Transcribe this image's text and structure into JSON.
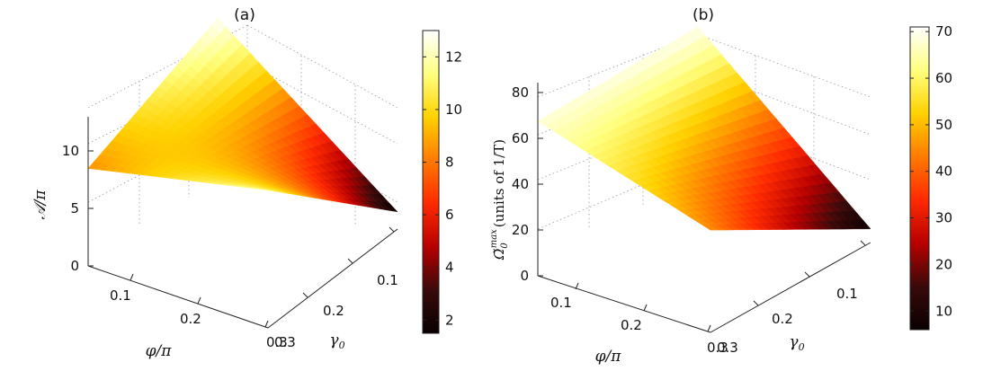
{
  "colormap": {
    "name": "hot",
    "stops": [
      "#0a0000",
      "#3a0a0a",
      "#b80000",
      "#ff2a00",
      "#ff7a00",
      "#ffd200",
      "#ffff80",
      "#ffffff"
    ]
  },
  "chart_data": [
    {
      "type": "surface",
      "panel_label": "(a)",
      "x_axis": {
        "label": "φ/π",
        "ticks": [
          "0.1",
          "0.2",
          "0.3"
        ],
        "range": [
          0.05,
          0.3
        ]
      },
      "y_axis": {
        "label": "γ0",
        "label_main": "γ",
        "label_sub": "0",
        "ticks": [
          "0.1",
          "0.2",
          "0.3"
        ],
        "range": [
          0.05,
          0.3
        ]
      },
      "z_axis": {
        "label": "𝒜/π",
        "ticks": [
          "0",
          "5",
          "10"
        ],
        "range": [
          0,
          13
        ]
      },
      "colorbar": {
        "ticks": [
          "2",
          "4",
          "6",
          "8",
          "10",
          "12"
        ],
        "range": [
          1.5,
          13
        ]
      },
      "surface": {
        "z_min": 1.5,
        "z_max": 13.0,
        "corner_xlow_ylow": 8.5,
        "corner_xlow_yhigh": 13.0,
        "corner_xhigh_ylow": 12.0,
        "corner_xhigh_yhigh": 1.5
      }
    },
    {
      "type": "surface",
      "panel_label": "(b)",
      "x_axis": {
        "label": "φ/π",
        "ticks": [
          "0.1",
          "0.2",
          "0.3"
        ],
        "range": [
          0.05,
          0.3
        ]
      },
      "y_axis": {
        "label": "γ0",
        "label_main": "γ",
        "label_sub": "0",
        "ticks": [
          "0.1",
          "0.2",
          "0.3"
        ],
        "range": [
          0.05,
          0.3
        ]
      },
      "z_axis": {
        "label": "Ω̃0^max (units of 1/T)",
        "label_main": "Ω̃",
        "label_sub": "0",
        "label_sup": "max",
        "label_tail": "(units of 1/T)",
        "ticks": [
          "0",
          "20",
          "40",
          "60",
          "80"
        ],
        "range": [
          0,
          85
        ]
      },
      "colorbar": {
        "ticks": [
          "10",
          "20",
          "30",
          "40",
          "50",
          "60",
          "70"
        ],
        "range": [
          6,
          71
        ]
      },
      "surface": {
        "z_min": 6.0,
        "z_max": 71.0,
        "corner_xlow_ylow": 68.0,
        "corner_xlow_yhigh": 70.0,
        "corner_xhigh_ylow": 45.0,
        "corner_xhigh_yhigh": 6.0
      }
    }
  ]
}
